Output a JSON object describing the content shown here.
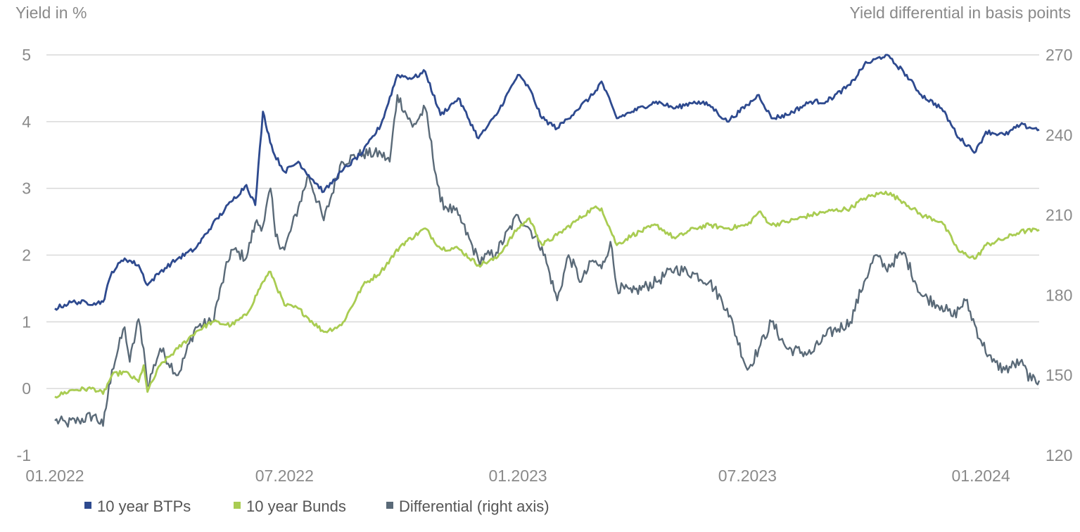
{
  "chart_data": {
    "type": "line",
    "left_axis_title": "Yield in %",
    "right_axis_title": "Yield differential in basis points",
    "x_ticks": [
      "01.2022",
      "07.2022",
      "01.2023",
      "07.2023",
      "01.2024"
    ],
    "y_left": {
      "min": -1,
      "max": 5,
      "ticks": [
        "5",
        "4",
        "3",
        "2",
        "1",
        "0",
        "-1"
      ]
    },
    "y_right": {
      "min": 120,
      "max": 270,
      "ticks": [
        "270",
        "240",
        "210",
        "180",
        "150",
        "120"
      ]
    },
    "x_range": [
      "2022-01-01",
      "2024-02-16"
    ],
    "grid": "horizontal",
    "legend_position": "bottom-left",
    "series": [
      {
        "name": "10 year BTPs",
        "color": "#2e4a8f",
        "axis": "left",
        "points": [
          [
            "2022-01-01",
            1.2
          ],
          [
            "2022-01-15",
            1.3
          ],
          [
            "2022-02-01",
            1.28
          ],
          [
            "2022-02-08",
            1.3
          ],
          [
            "2022-02-15",
            1.75
          ],
          [
            "2022-02-25",
            1.95
          ],
          [
            "2022-03-08",
            1.85
          ],
          [
            "2022-03-15",
            1.55
          ],
          [
            "2022-03-25",
            1.75
          ],
          [
            "2022-04-08",
            1.95
          ],
          [
            "2022-04-22",
            2.1
          ],
          [
            "2022-05-05",
            2.45
          ],
          [
            "2022-05-20",
            2.8
          ],
          [
            "2022-06-01",
            3.05
          ],
          [
            "2022-06-08",
            2.75
          ],
          [
            "2022-06-14",
            4.15
          ],
          [
            "2022-06-22",
            3.55
          ],
          [
            "2022-07-01",
            3.25
          ],
          [
            "2022-07-12",
            3.4
          ],
          [
            "2022-07-20",
            3.2
          ],
          [
            "2022-08-01",
            2.95
          ],
          [
            "2022-08-15",
            3.25
          ],
          [
            "2022-09-01",
            3.55
          ],
          [
            "2022-09-15",
            3.95
          ],
          [
            "2022-09-28",
            4.7
          ],
          [
            "2022-10-10",
            4.65
          ],
          [
            "2022-10-20",
            4.75
          ],
          [
            "2022-11-01",
            4.1
          ],
          [
            "2022-11-15",
            4.35
          ],
          [
            "2022-12-01",
            3.75
          ],
          [
            "2022-12-15",
            4.1
          ],
          [
            "2023-01-01",
            4.7
          ],
          [
            "2023-01-10",
            4.5
          ],
          [
            "2023-01-20",
            4.05
          ],
          [
            "2023-02-01",
            3.9
          ],
          [
            "2023-02-15",
            4.15
          ],
          [
            "2023-03-01",
            4.4
          ],
          [
            "2023-03-08",
            4.6
          ],
          [
            "2023-03-20",
            4.05
          ],
          [
            "2023-04-01",
            4.15
          ],
          [
            "2023-04-20",
            4.3
          ],
          [
            "2023-05-05",
            4.2
          ],
          [
            "2023-05-20",
            4.3
          ],
          [
            "2023-06-01",
            4.25
          ],
          [
            "2023-06-15",
            4.0
          ],
          [
            "2023-07-01",
            4.25
          ],
          [
            "2023-07-10",
            4.4
          ],
          [
            "2023-07-20",
            4.05
          ],
          [
            "2023-08-01",
            4.1
          ],
          [
            "2023-08-20",
            4.3
          ],
          [
            "2023-09-01",
            4.3
          ],
          [
            "2023-09-20",
            4.55
          ],
          [
            "2023-10-01",
            4.85
          ],
          [
            "2023-10-18",
            5.0
          ],
          [
            "2023-11-01",
            4.75
          ],
          [
            "2023-11-15",
            4.4
          ],
          [
            "2023-12-01",
            4.2
          ],
          [
            "2023-12-15",
            3.75
          ],
          [
            "2023-12-28",
            3.55
          ],
          [
            "2024-01-05",
            3.85
          ],
          [
            "2024-01-20",
            3.8
          ],
          [
            "2024-02-01",
            3.95
          ],
          [
            "2024-02-16",
            3.88
          ]
        ]
      },
      {
        "name": "10 year Bunds",
        "color": "#a9cc52",
        "axis": "left",
        "points": [
          [
            "2022-01-01",
            -0.12
          ],
          [
            "2022-01-15",
            -0.02
          ],
          [
            "2022-02-01",
            0.0
          ],
          [
            "2022-02-08",
            -0.08
          ],
          [
            "2022-02-15",
            0.2
          ],
          [
            "2022-02-25",
            0.25
          ],
          [
            "2022-03-08",
            0.1
          ],
          [
            "2022-03-12",
            0.35
          ],
          [
            "2022-03-15",
            -0.05
          ],
          [
            "2022-03-25",
            0.35
          ],
          [
            "2022-04-08",
            0.6
          ],
          [
            "2022-04-22",
            0.85
          ],
          [
            "2022-05-05",
            1.0
          ],
          [
            "2022-05-20",
            0.95
          ],
          [
            "2022-06-01",
            1.1
          ],
          [
            "2022-06-14",
            1.6
          ],
          [
            "2022-06-20",
            1.75
          ],
          [
            "2022-07-01",
            1.25
          ],
          [
            "2022-07-12",
            1.2
          ],
          [
            "2022-07-20",
            1.05
          ],
          [
            "2022-08-01",
            0.85
          ],
          [
            "2022-08-15",
            0.95
          ],
          [
            "2022-09-01",
            1.55
          ],
          [
            "2022-09-15",
            1.75
          ],
          [
            "2022-10-01",
            2.15
          ],
          [
            "2022-10-20",
            2.4
          ],
          [
            "2022-11-01",
            2.1
          ],
          [
            "2022-11-15",
            2.1
          ],
          [
            "2022-12-01",
            1.85
          ],
          [
            "2022-12-15",
            1.95
          ],
          [
            "2023-01-01",
            2.4
          ],
          [
            "2023-01-10",
            2.55
          ],
          [
            "2023-01-20",
            2.15
          ],
          [
            "2023-02-01",
            2.3
          ],
          [
            "2023-02-15",
            2.5
          ],
          [
            "2023-03-01",
            2.7
          ],
          [
            "2023-03-08",
            2.7
          ],
          [
            "2023-03-20",
            2.15
          ],
          [
            "2023-04-01",
            2.3
          ],
          [
            "2023-04-20",
            2.45
          ],
          [
            "2023-05-05",
            2.25
          ],
          [
            "2023-05-20",
            2.4
          ],
          [
            "2023-06-01",
            2.45
          ],
          [
            "2023-06-15",
            2.4
          ],
          [
            "2023-07-01",
            2.45
          ],
          [
            "2023-07-10",
            2.65
          ],
          [
            "2023-07-20",
            2.45
          ],
          [
            "2023-08-01",
            2.5
          ],
          [
            "2023-08-20",
            2.6
          ],
          [
            "2023-09-01",
            2.65
          ],
          [
            "2023-09-20",
            2.7
          ],
          [
            "2023-10-01",
            2.85
          ],
          [
            "2023-10-18",
            2.95
          ],
          [
            "2023-11-01",
            2.8
          ],
          [
            "2023-11-15",
            2.6
          ],
          [
            "2023-12-01",
            2.5
          ],
          [
            "2023-12-15",
            2.05
          ],
          [
            "2023-12-28",
            1.95
          ],
          [
            "2024-01-05",
            2.15
          ],
          [
            "2024-01-20",
            2.25
          ],
          [
            "2024-02-01",
            2.35
          ],
          [
            "2024-02-16",
            2.38
          ]
        ]
      },
      {
        "name": "Differential (right axis)",
        "color": "#5a6a78",
        "axis": "right",
        "points": [
          [
            "2022-01-01",
            133
          ],
          [
            "2022-01-10",
            132
          ],
          [
            "2022-01-20",
            133
          ],
          [
            "2022-02-01",
            135
          ],
          [
            "2022-02-08",
            131
          ],
          [
            "2022-02-15",
            152
          ],
          [
            "2022-02-25",
            168
          ],
          [
            "2022-03-01",
            155
          ],
          [
            "2022-03-08",
            171
          ],
          [
            "2022-03-12",
            160
          ],
          [
            "2022-03-15",
            146
          ],
          [
            "2022-03-25",
            160
          ],
          [
            "2022-04-08",
            150
          ],
          [
            "2022-04-22",
            168
          ],
          [
            "2022-05-05",
            170
          ],
          [
            "2022-05-20",
            197
          ],
          [
            "2022-06-01",
            194
          ],
          [
            "2022-06-08",
            207
          ],
          [
            "2022-06-14",
            206
          ],
          [
            "2022-06-20",
            220
          ],
          [
            "2022-06-24",
            202
          ],
          [
            "2022-07-01",
            197
          ],
          [
            "2022-07-12",
            213
          ],
          [
            "2022-07-20",
            225
          ],
          [
            "2022-08-01",
            208
          ],
          [
            "2022-08-15",
            230
          ],
          [
            "2022-09-01",
            233
          ],
          [
            "2022-09-15",
            233
          ],
          [
            "2022-09-22",
            230
          ],
          [
            "2022-09-28",
            255
          ],
          [
            "2022-10-10",
            243
          ],
          [
            "2022-10-20",
            250
          ],
          [
            "2022-11-01",
            215
          ],
          [
            "2022-11-15",
            210
          ],
          [
            "2022-12-01",
            193
          ],
          [
            "2022-12-15",
            196
          ],
          [
            "2023-01-01",
            210
          ],
          [
            "2023-01-10",
            205
          ],
          [
            "2023-01-20",
            198
          ],
          [
            "2023-02-01",
            178
          ],
          [
            "2023-02-10",
            195
          ],
          [
            "2023-02-20",
            185
          ],
          [
            "2023-03-01",
            193
          ],
          [
            "2023-03-08",
            190
          ],
          [
            "2023-03-15",
            200
          ],
          [
            "2023-03-20",
            183
          ],
          [
            "2023-04-01",
            181
          ],
          [
            "2023-04-20",
            185
          ],
          [
            "2023-05-05",
            190
          ],
          [
            "2023-05-20",
            188
          ],
          [
            "2023-06-01",
            185
          ],
          [
            "2023-06-15",
            175
          ],
          [
            "2023-07-01",
            152
          ],
          [
            "2023-07-10",
            160
          ],
          [
            "2023-07-20",
            170
          ],
          [
            "2023-08-01",
            160
          ],
          [
            "2023-08-20",
            158
          ],
          [
            "2023-09-01",
            165
          ],
          [
            "2023-09-20",
            170
          ],
          [
            "2023-10-01",
            185
          ],
          [
            "2023-10-10",
            195
          ],
          [
            "2023-10-18",
            190
          ],
          [
            "2023-11-01",
            196
          ],
          [
            "2023-11-15",
            180
          ],
          [
            "2023-12-01",
            176
          ],
          [
            "2023-12-10",
            172
          ],
          [
            "2023-12-20",
            178
          ],
          [
            "2024-01-01",
            163
          ],
          [
            "2024-01-10",
            155
          ],
          [
            "2024-01-20",
            152
          ],
          [
            "2024-02-01",
            155
          ],
          [
            "2024-02-10",
            148
          ],
          [
            "2024-02-16",
            148
          ]
        ]
      }
    ]
  }
}
